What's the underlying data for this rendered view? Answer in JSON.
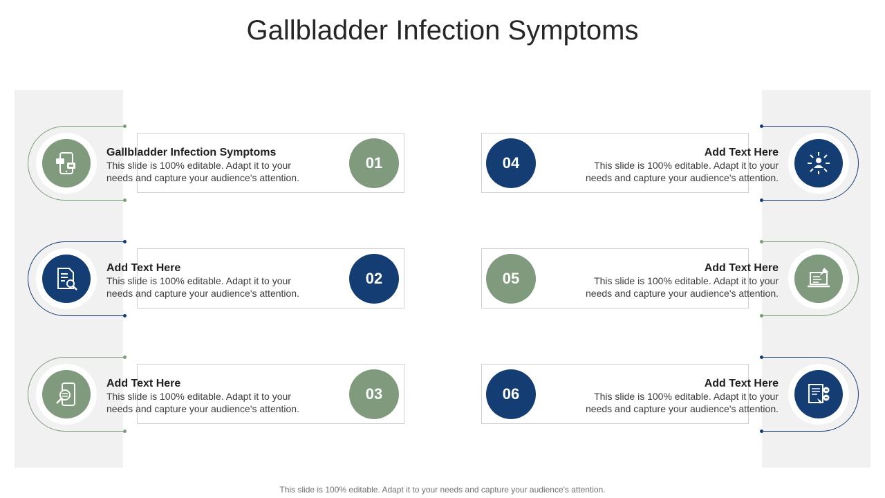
{
  "title": "Gallbladder Infection Symptoms",
  "footer": "This slide is 100% editable. Adapt it to your needs and capture your audience's attention.",
  "colors": {
    "green": "#7f9a7c",
    "blue": "#143d73",
    "panel": "#f1f1f1"
  },
  "items": [
    {
      "number": "01",
      "heading": "Gallbladder Infection Symptoms",
      "line1": "This slide is 100% editable.  Adapt it to your",
      "line2": "needs and capture your audience's attention.",
      "icon": "mobile-chat-icon",
      "color": "green"
    },
    {
      "number": "02",
      "heading": "Add Text Here",
      "line1": "This slide is 100% editable.  Adapt it to your",
      "line2": "needs and capture your audience's attention.",
      "icon": "document-search-icon",
      "color": "blue"
    },
    {
      "number": "03",
      "heading": "Add Text Here",
      "line1": "This slide is 100% editable.  Adapt it to your",
      "line2": "needs and capture your audience's attention.",
      "icon": "mobile-search-icon",
      "color": "green"
    },
    {
      "number": "04",
      "heading": "Add Text Here",
      "line1": "This slide is 100% editable.  Adapt it to your",
      "line2": "needs and capture your audience's attention.",
      "icon": "user-network-icon",
      "color": "blue"
    },
    {
      "number": "05",
      "heading": "Add Text Here",
      "line1": "This slide is 100% editable.  Adapt it to your",
      "line2": "needs and capture your audience's attention.",
      "icon": "laptop-pin-icon",
      "color": "green"
    },
    {
      "number": "06",
      "heading": "Add Text Here",
      "line1": "This slide is 100% editable.  Adapt it to your",
      "line2": "needs and capture your audience's attention.",
      "icon": "document-chat-icon",
      "color": "blue"
    }
  ]
}
